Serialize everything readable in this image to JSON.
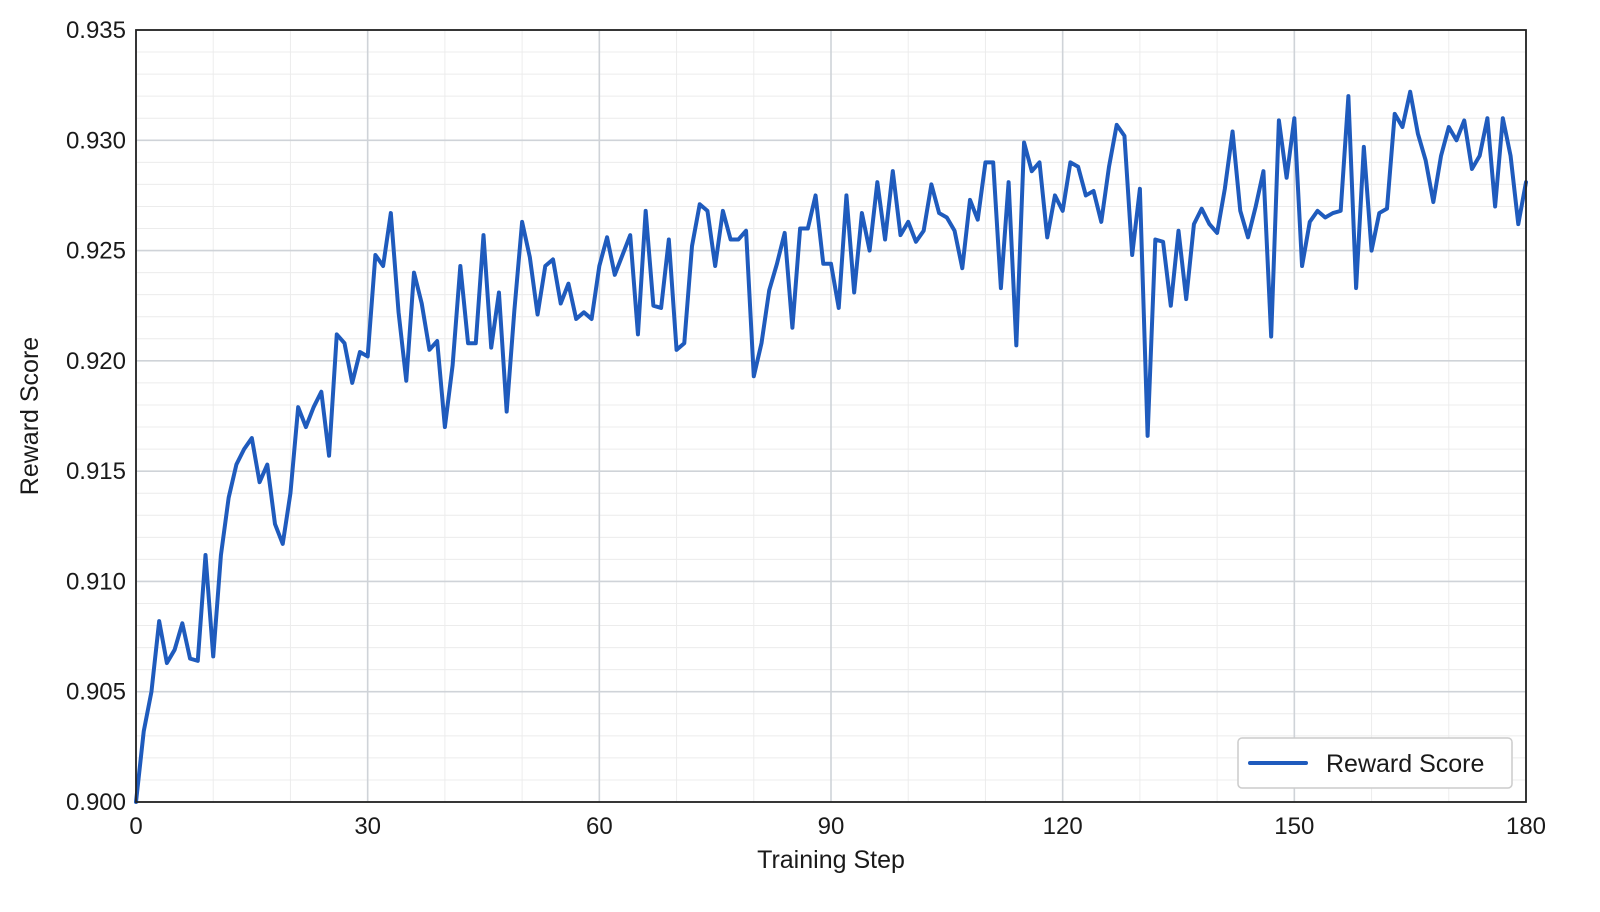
{
  "chart_data": {
    "type": "line",
    "title": "",
    "xlabel": "Training Step",
    "ylabel": "Reward Score",
    "xlim": [
      0,
      180
    ],
    "ylim": [
      0.9,
      0.935
    ],
    "x_ticks": [
      0,
      30,
      60,
      90,
      120,
      150,
      180
    ],
    "x_tick_labels": [
      "0",
      "30",
      "60",
      "90",
      "120",
      "150",
      "180"
    ],
    "y_ticks": [
      0.9,
      0.905,
      0.91,
      0.915,
      0.92,
      0.925,
      0.93,
      0.935
    ],
    "y_tick_labels": [
      "0.900",
      "0.905",
      "0.910",
      "0.915",
      "0.920",
      "0.925",
      "0.930",
      "0.935"
    ],
    "grid": true,
    "minor_grid": true,
    "legend": {
      "position": "lower-right",
      "entries": [
        "Reward Score"
      ]
    },
    "series": [
      {
        "name": "Reward Score",
        "color": "#1f5bbd",
        "x": [
          0,
          1,
          2,
          3,
          4,
          5,
          6,
          7,
          8,
          9,
          10,
          11,
          12,
          13,
          14,
          15,
          16,
          17,
          18,
          19,
          20,
          21,
          22,
          23,
          24,
          25,
          26,
          27,
          28,
          29,
          30,
          31,
          32,
          33,
          34,
          35,
          36,
          37,
          38,
          39,
          40,
          41,
          42,
          43,
          44,
          45,
          46,
          47,
          48,
          49,
          50,
          51,
          52,
          53,
          54,
          55,
          56,
          57,
          58,
          59,
          60,
          61,
          62,
          63,
          64,
          65,
          66,
          67,
          68,
          69,
          70,
          71,
          72,
          73,
          74,
          75,
          76,
          77,
          78,
          79,
          80,
          81,
          82,
          83,
          84,
          85,
          86,
          87,
          88,
          89,
          90,
          91,
          92,
          93,
          94,
          95,
          96,
          97,
          98,
          99,
          100,
          101,
          102,
          103,
          104,
          105,
          106,
          107,
          108,
          109,
          110,
          111,
          112,
          113,
          114,
          115,
          116,
          117,
          118,
          119,
          120,
          121,
          122,
          123,
          124,
          125,
          126,
          127,
          128,
          129,
          130,
          131,
          132,
          133,
          134,
          135,
          136,
          137,
          138,
          139,
          140,
          141,
          142,
          143,
          144,
          145,
          146,
          147,
          148,
          149,
          150,
          151,
          152,
          153,
          154,
          155,
          156,
          157,
          158,
          159,
          160,
          161,
          162,
          163,
          164,
          165,
          166,
          167,
          168,
          169,
          170,
          171,
          172,
          173,
          174,
          175,
          176,
          177,
          178,
          179,
          180
        ],
        "values": [
          0.9,
          0.9032,
          0.905,
          0.9082,
          0.9063,
          0.9069,
          0.9081,
          0.9065,
          0.9064,
          0.9112,
          0.9066,
          0.9112,
          0.9138,
          0.9153,
          0.916,
          0.9165,
          0.9145,
          0.9153,
          0.9126,
          0.9117,
          0.914,
          0.9179,
          0.917,
          0.9179,
          0.9186,
          0.9157,
          0.9212,
          0.9208,
          0.919,
          0.9204,
          0.9202,
          0.9248,
          0.9243,
          0.9267,
          0.9222,
          0.9191,
          0.924,
          0.9226,
          0.9205,
          0.9209,
          0.917,
          0.9198,
          0.9243,
          0.9208,
          0.9208,
          0.9257,
          0.9206,
          0.9231,
          0.9177,
          0.9223,
          0.9263,
          0.9247,
          0.9221,
          0.9243,
          0.9246,
          0.9226,
          0.9235,
          0.9219,
          0.9222,
          0.9219,
          0.9243,
          0.9256,
          0.9239,
          0.9248,
          0.9257,
          0.9212,
          0.9268,
          0.9225,
          0.9224,
          0.9255,
          0.9205,
          0.9208,
          0.9252,
          0.9271,
          0.9268,
          0.9243,
          0.9268,
          0.9255,
          0.9255,
          0.9259,
          0.9193,
          0.9208,
          0.9232,
          0.9244,
          0.9258,
          0.9215,
          0.926,
          0.926,
          0.9275,
          0.9244,
          0.9244,
          0.9224,
          0.9275,
          0.9231,
          0.9267,
          0.925,
          0.9281,
          0.9255,
          0.9286,
          0.9257,
          0.9263,
          0.9254,
          0.9259,
          0.928,
          0.9267,
          0.9265,
          0.9259,
          0.9242,
          0.9273,
          0.9264,
          0.929,
          0.929,
          0.9233,
          0.9281,
          0.9207,
          0.9299,
          0.9286,
          0.929,
          0.9256,
          0.9275,
          0.9268,
          0.929,
          0.9288,
          0.9275,
          0.9277,
          0.9263,
          0.9288,
          0.9307,
          0.9302,
          0.9248,
          0.9278,
          0.9166,
          0.9255,
          0.9254,
          0.9225,
          0.9259,
          0.9228,
          0.9262,
          0.9269,
          0.9262,
          0.9258,
          0.9278,
          0.9304,
          0.9268,
          0.9256,
          0.927,
          0.9286,
          0.9211,
          0.9309,
          0.9283,
          0.931,
          0.9243,
          0.9263,
          0.9268,
          0.9265,
          0.9267,
          0.9268,
          0.932,
          0.9233,
          0.9297,
          0.925,
          0.9267,
          0.9269,
          0.9312,
          0.9306,
          0.9322,
          0.9303,
          0.9291,
          0.9272,
          0.9293,
          0.9306,
          0.93,
          0.9309,
          0.9287,
          0.9293,
          0.931,
          0.927,
          0.931,
          0.9293,
          0.9262,
          0.9281
        ]
      }
    ]
  }
}
